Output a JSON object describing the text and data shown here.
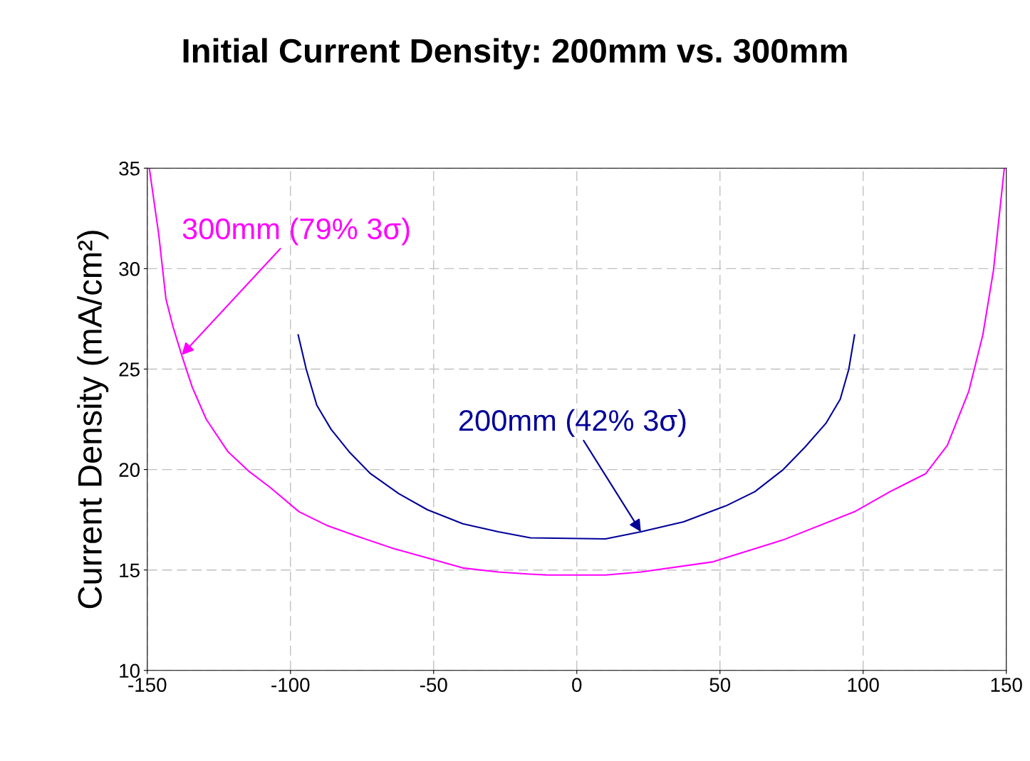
{
  "chart_data": {
    "type": "line",
    "title": "Initial Current Density: 200mm vs. 300mm",
    "ylabel": "Current Density (mA/cm²)",
    "xlim": [
      -150,
      150
    ],
    "xticks": [
      -150,
      -100,
      -50,
      0,
      50,
      100,
      150
    ],
    "ylim": [
      10,
      35
    ],
    "yticks": [
      10,
      15,
      20,
      25,
      30,
      35
    ],
    "grid": true,
    "line_style": "solid",
    "marker": "none",
    "series": [
      {
        "color": "#ff00ff",
        "x": [
          -149.3,
          -146,
          -143.5,
          -141,
          -138,
          -134.3,
          -129.4,
          -121.9,
          -114.4,
          -107,
          -97,
          -87,
          -77.1,
          -64.7,
          -52.2,
          -39.8,
          -27.4,
          -17.4,
          -10,
          10,
          22.4,
          47.3,
          72.1,
          97,
          109.4,
          121.9,
          129.4,
          136.9,
          141.8,
          145.5,
          149.3
        ],
        "values": [
          35,
          31.7,
          28.5,
          27.1,
          25.7,
          24.1,
          22.5,
          20.9,
          19.9,
          19.1,
          17.9,
          17.2,
          16.7,
          16.1,
          15.6,
          15.1,
          14.9,
          14.8,
          14.75,
          14.75,
          14.9,
          15.4,
          16.5,
          17.9,
          18.9,
          19.8,
          21.2,
          23.9,
          26.7,
          29.9,
          35
        ]
      },
      {
        "color": "#000099",
        "x": [
          -97.3,
          -94.5,
          -90.8,
          -85.8,
          -79.6,
          -72.1,
          -62.2,
          -52.2,
          -39.8,
          -27.4,
          -16.2,
          10,
          22.4,
          37.3,
          52.2,
          62.2,
          72.1,
          79.6,
          87,
          92,
          95,
          97
        ],
        "values": [
          26.7,
          25.0,
          23.2,
          22.0,
          20.9,
          19.8,
          18.8,
          18.0,
          17.3,
          16.9,
          16.6,
          16.55,
          16.9,
          17.4,
          18.2,
          18.9,
          20.0,
          21.1,
          22.3,
          23.5,
          25.0,
          26.7
        ]
      }
    ],
    "annotations": [
      {
        "text": "300mm (79% 3σ)",
        "x": -138,
        "y": 25.7
      },
      {
        "text": "200mm (42% 3σ)",
        "x": 22.4,
        "y": 16.9
      }
    ]
  }
}
